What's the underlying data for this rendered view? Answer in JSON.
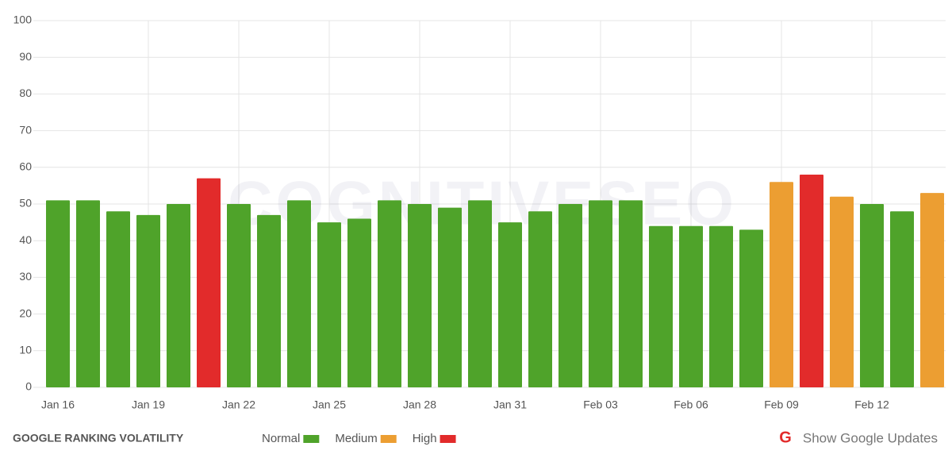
{
  "chart_data": {
    "type": "bar",
    "title": "GOOGLE RANKING VOLATILITY",
    "watermark": "COGNITIVESEO",
    "link": "Show Google Updates",
    "categories": [
      "Jan 16",
      null,
      null,
      "Jan 19",
      null,
      null,
      "Jan 22",
      null,
      null,
      "Jan 25",
      null,
      null,
      "Jan 28",
      null,
      null,
      "Jan 31",
      null,
      null,
      "Feb 03",
      null,
      null,
      "Feb 06",
      null,
      null,
      "Feb 09",
      null,
      null,
      "Feb 12",
      null,
      null
    ],
    "values": [
      51,
      51,
      48,
      47,
      50,
      57,
      50,
      47,
      51,
      45,
      46,
      51,
      50,
      49,
      51,
      45,
      48,
      50,
      51,
      51,
      44,
      44,
      44,
      43,
      56,
      58,
      52,
      50,
      48,
      53
    ],
    "colors": [
      "#4fa32a",
      "#4fa32a",
      "#4fa32a",
      "#4fa32a",
      "#4fa32a",
      "#e22b2b",
      "#4fa32a",
      "#4fa32a",
      "#4fa32a",
      "#4fa32a",
      "#4fa32a",
      "#4fa32a",
      "#4fa32a",
      "#4fa32a",
      "#4fa32a",
      "#4fa32a",
      "#4fa32a",
      "#4fa32a",
      "#4fa32a",
      "#4fa32a",
      "#4fa32a",
      "#4fa32a",
      "#4fa32a",
      "#4fa32a",
      "#ec9e32",
      "#e22b2b",
      "#ec9e32",
      "#4fa32a",
      "#4fa32a",
      "#ec9e32"
    ],
    "legend": [
      {
        "name": "Normal",
        "color": "#4fa32a"
      },
      {
        "name": "Medium",
        "color": "#ec9e32"
      },
      {
        "name": "High",
        "color": "#e22b2b"
      }
    ],
    "ylim": [
      0,
      100
    ],
    "yticks": [
      0,
      10,
      20,
      30,
      40,
      50,
      60,
      70,
      80,
      90,
      100
    ],
    "grid": true
  }
}
